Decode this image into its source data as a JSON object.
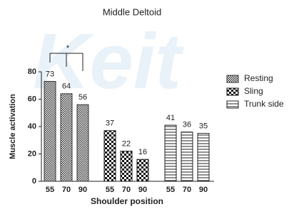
{
  "chart_data": {
    "type": "bar",
    "title": "Middle Deltoid",
    "watermark": "Keit",
    "x_label": "Shoulder position",
    "y_label": "Muscle activation",
    "categories": [
      "55",
      "70",
      "90"
    ],
    "series": [
      {
        "name": "Resting",
        "pattern": "fine-check",
        "color": "#333333",
        "values": [
          73,
          64,
          56
        ]
      },
      {
        "name": "Sling",
        "pattern": "checkerboard",
        "color": "#111111",
        "values": [
          37,
          22,
          16
        ]
      },
      {
        "name": "Trunk side",
        "pattern": "horizontal-lines",
        "color": "#222222",
        "values": [
          41,
          36,
          35
        ]
      }
    ],
    "annotation": "*",
    "ylim": [
      0,
      80
    ],
    "yticks": [
      0,
      20,
      40,
      60,
      80
    ],
    "legend": "right"
  }
}
